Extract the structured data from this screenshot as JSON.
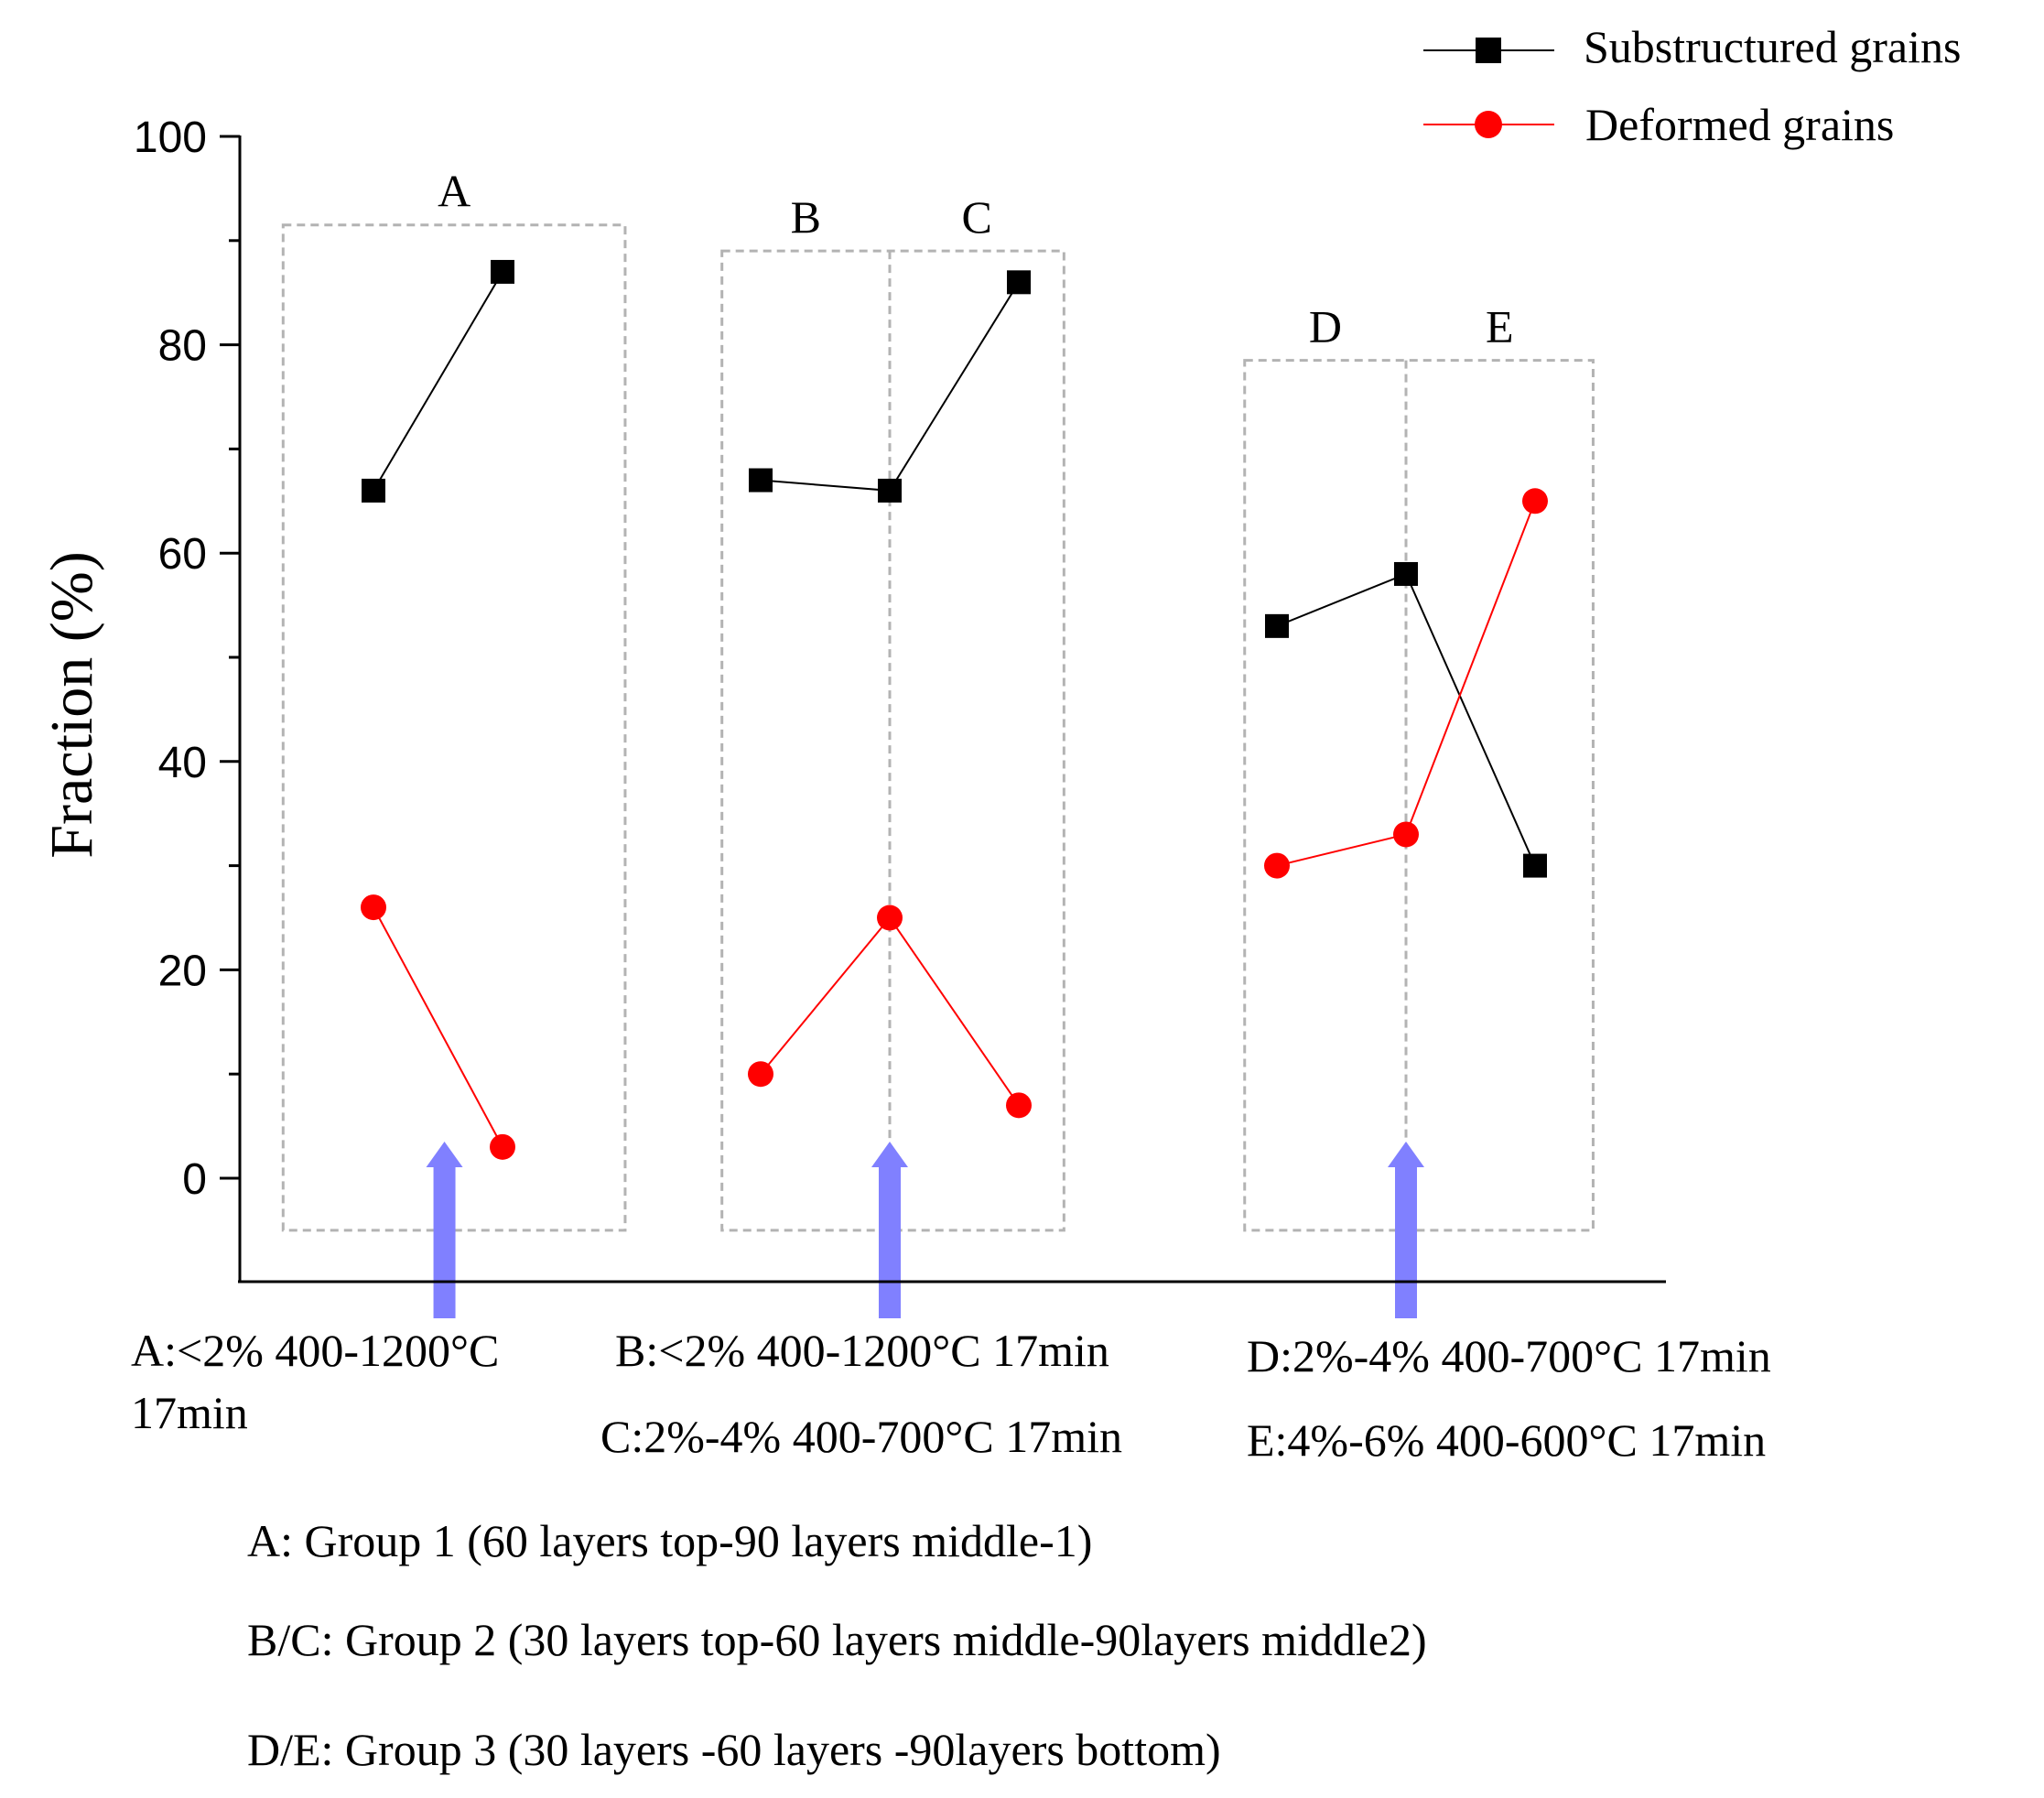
{
  "chart_data": {
    "type": "line",
    "ylabel": "Fraction (%)",
    "xlabel": "",
    "ylim": [
      -10,
      100
    ],
    "yticks": [
      0,
      20,
      40,
      60,
      80,
      100
    ],
    "grid": false,
    "x_positions": [
      1,
      2,
      3,
      4,
      5,
      6,
      7,
      8,
      9
    ],
    "series": [
      {
        "name": "Substructured grains",
        "color": "#000000",
        "marker": "square",
        "segments": [
          {
            "x": [
              1,
              2
            ],
            "y": [
              66,
              87
            ]
          },
          {
            "x": [
              4,
              5,
              6
            ],
            "y": [
              67,
              66,
              86
            ]
          },
          {
            "x": [
              8,
              9,
              10
            ],
            "y": [
              53,
              58,
              30
            ]
          }
        ]
      },
      {
        "name": "Deformed grains",
        "color": "#ff0000",
        "marker": "circle",
        "segments": [
          {
            "x": [
              1,
              2
            ],
            "y": [
              26,
              3
            ]
          },
          {
            "x": [
              4,
              5,
              6
            ],
            "y": [
              10,
              25,
              7
            ]
          },
          {
            "x": [
              8,
              9,
              10
            ],
            "y": [
              30,
              33,
              65
            ]
          }
        ]
      }
    ],
    "legend": {
      "position": "top-right",
      "entries": [
        "Substructured grains",
        "Deformed grains"
      ]
    },
    "boxes": [
      {
        "labels": [
          "A"
        ],
        "x_range": [
          0.3,
          2.95
        ],
        "y_range": [
          -5,
          91.5
        ]
      },
      {
        "labels": [
          "B",
          "C"
        ],
        "x_range": [
          3.7,
          6.35
        ],
        "divider_x": 5,
        "y_range": [
          -5,
          89
        ]
      },
      {
        "labels": [
          "D",
          "E"
        ],
        "x_range": [
          7.75,
          10.45
        ],
        "divider_x": 9,
        "y_range": [
          -5,
          78.5
        ]
      }
    ],
    "arrows": [
      {
        "x": 1.55,
        "color": "#8080ff"
      },
      {
        "x": 5.0,
        "color": "#8080ff"
      },
      {
        "x": 9.0,
        "color": "#8080ff"
      }
    ],
    "conditions": {
      "a_line1": "A:<2%  400-1200°C",
      "a_line2": "17min",
      "b": "B:<2%  400-1200°C 17min",
      "c": "C:2%-4%  400-700°C 17min",
      "d": "D:2%-4%  400-700°C  17min",
      "e": "E:4%-6%  400-600°C  17min"
    },
    "group_notes": [
      "A: Group 1 (60 layers top-90 layers middle-1)",
      "B/C: Group 2 (30 layers top-60 layers middle-90layers middle2)",
      "D/E: Group 3 (30 layers -60 layers -90layers bottom)"
    ]
  }
}
